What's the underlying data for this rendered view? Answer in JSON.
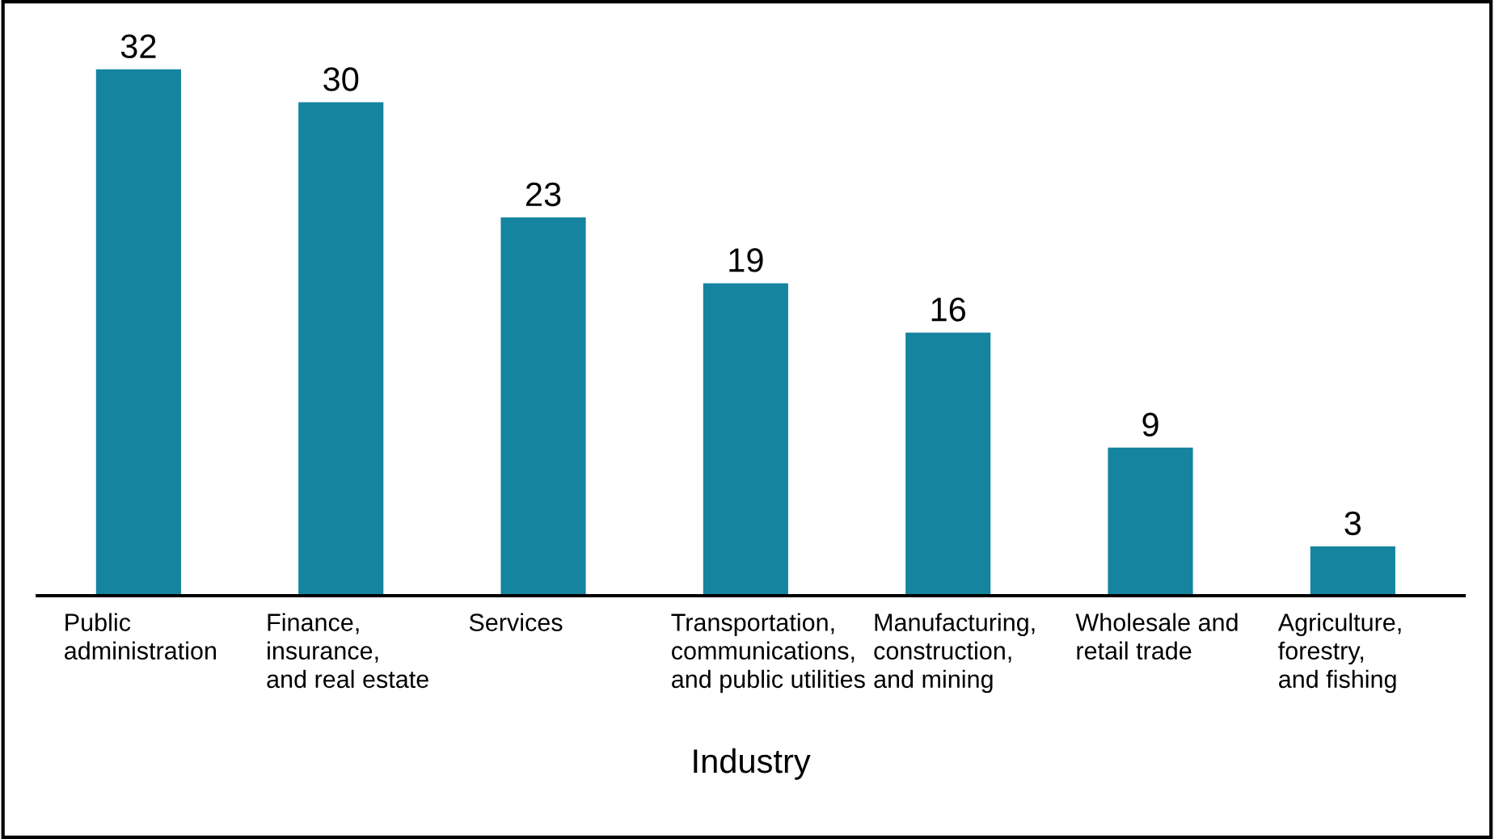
{
  "chart_data": {
    "type": "bar",
    "xlabel": "Industry",
    "categories": [
      "Public\nadministration",
      "Finance,\ninsurance,\nand real estate",
      "Services",
      "Transportation,\ncommunications,\nand public utilities",
      "Manufacturing,\nconstruction,\nand mining",
      "Wholesale and\nretail trade",
      "Agriculture,\nforestry,\nand fishing"
    ],
    "values": [
      32,
      30,
      23,
      19,
      16,
      9,
      3
    ],
    "color": "#14849f",
    "data_labels": true
  }
}
